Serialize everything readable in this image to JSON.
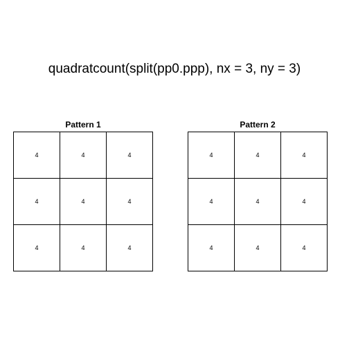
{
  "title": "quadratcount(split(pp0.ppp), nx = 3, ny = 3)",
  "panels": [
    {
      "title": "Pattern 1",
      "counts": [
        "4",
        "4",
        "4",
        "4",
        "4",
        "4",
        "4",
        "4",
        "4"
      ]
    },
    {
      "title": "Pattern 2",
      "counts": [
        "4",
        "4",
        "4",
        "4",
        "4",
        "4",
        "4",
        "4",
        "4"
      ]
    }
  ]
}
